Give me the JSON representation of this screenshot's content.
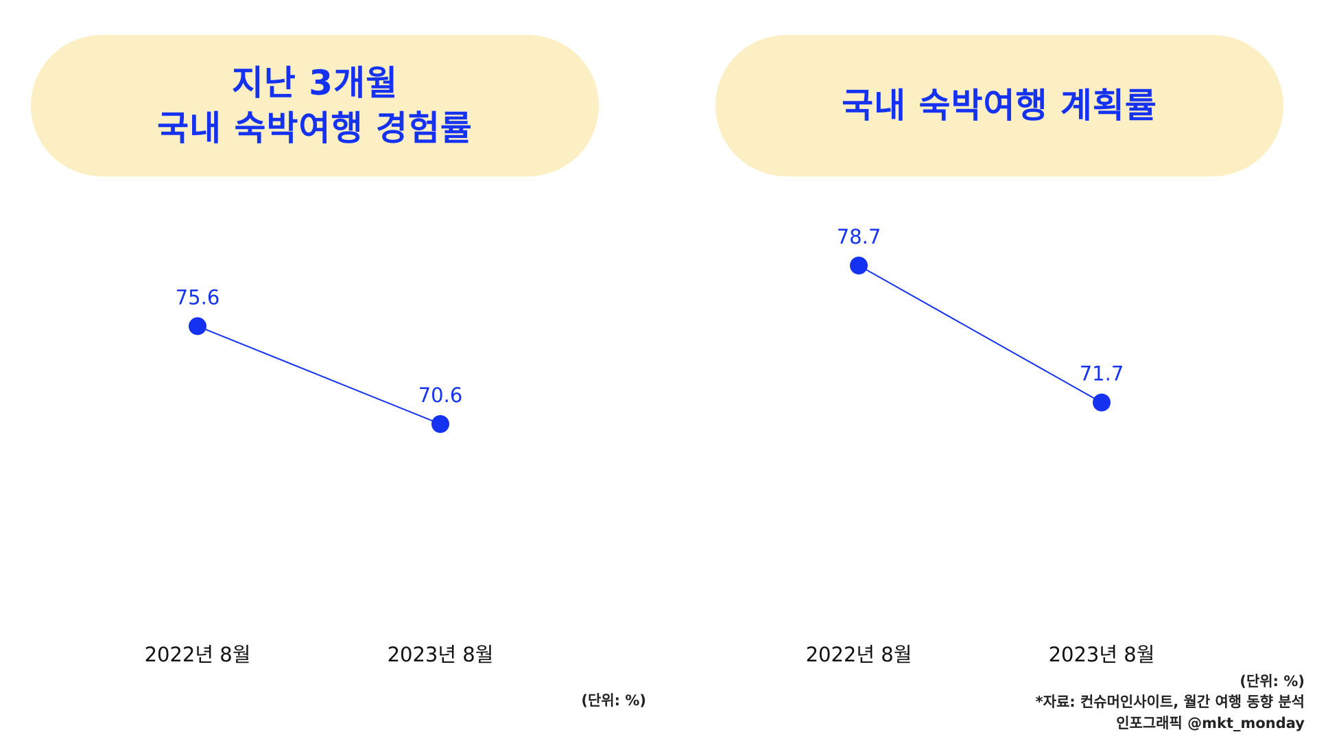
{
  "left_panel": {
    "title_lines": [
      "지난 3개월",
      "국내 숙박여행 경험률"
    ],
    "unit": "(단위: %)"
  },
  "right_panel": {
    "title_lines": [
      "국내 숙박여행 계획률"
    ],
    "unit": "(단위: %)"
  },
  "footer": {
    "source": "*자료: 컨슈머인사이트, 월간 여행 동향 분석",
    "credit": "인포그래픽 @mkt_monday"
  },
  "colors": {
    "accent": "#1432f0",
    "pill_background": "#fdefc4",
    "text": "#111111"
  },
  "chart_data": [
    {
      "type": "line",
      "title": "지난 3개월 국내 숙박여행 경험률",
      "categories": [
        "2022년 8월",
        "2023년 8월"
      ],
      "values": [
        75.6,
        70.6
      ],
      "value_labels": [
        "75.6",
        "70.6"
      ],
      "unit": "%",
      "grid": false,
      "legend": "none"
    },
    {
      "type": "line",
      "title": "국내 숙박여행 계획률",
      "categories": [
        "2022년 8월",
        "2023년 8월"
      ],
      "values": [
        78.7,
        71.7
      ],
      "value_labels": [
        "78.7",
        "71.7"
      ],
      "unit": "%",
      "grid": false,
      "legend": "none"
    }
  ]
}
